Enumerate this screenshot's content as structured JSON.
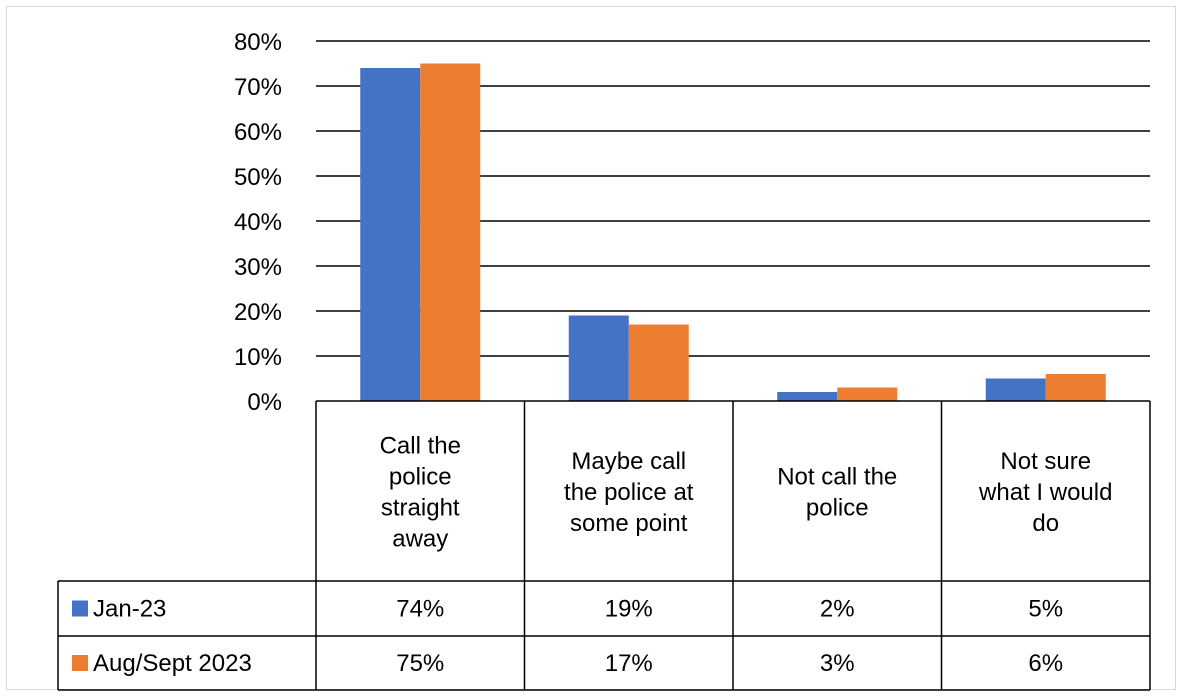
{
  "chart_data": {
    "type": "bar",
    "categories": [
      [
        "Call the",
        "police",
        "straight",
        "away"
      ],
      [
        "Maybe call",
        "the police at",
        "some point"
      ],
      [
        "Not call the",
        "police"
      ],
      [
        "Not sure",
        "what I would",
        "do"
      ]
    ],
    "series": [
      {
        "name": "Jan-23",
        "color": "#4472c4",
        "values": [
          74,
          19,
          2,
          5
        ],
        "labels": [
          "74%",
          "19%",
          "2%",
          "5%"
        ]
      },
      {
        "name": "Aug/Sept 2023",
        "color": "#ed7d31",
        "values": [
          75,
          17,
          3,
          6
        ],
        "labels": [
          "75%",
          "17%",
          "3%",
          "6%"
        ]
      }
    ],
    "ylim": [
      0,
      80
    ],
    "yticks": [
      "0%",
      "10%",
      "20%",
      "30%",
      "40%",
      "50%",
      "60%",
      "70%",
      "80%"
    ],
    "grid": true,
    "legend": "data-table"
  }
}
